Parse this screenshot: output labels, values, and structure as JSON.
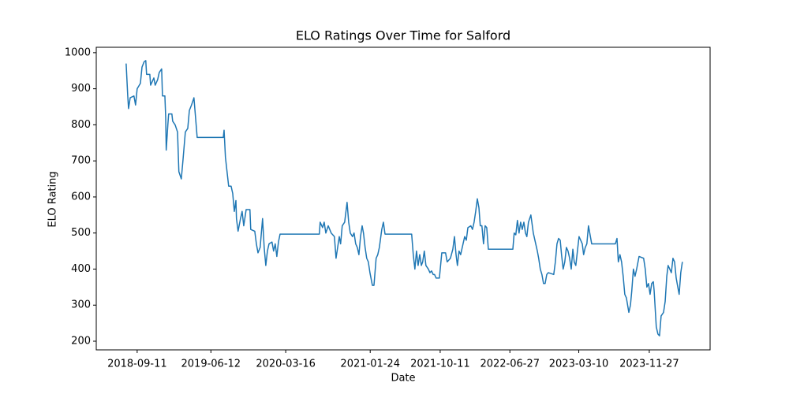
{
  "chart_data": {
    "type": "line",
    "title": "ELO Ratings Over Time for Salford",
    "x_label": "Date",
    "y_label": "ELO Rating",
    "color": "#1f77b4",
    "x": [
      "2018-08-01",
      "2018-08-07",
      "2018-08-10",
      "2018-08-16",
      "2018-08-30",
      "2018-09-05",
      "2018-09-11",
      "2018-09-23",
      "2018-09-29",
      "2018-10-07",
      "2018-10-13",
      "2018-10-16",
      "2018-10-28",
      "2018-10-31",
      "2018-11-12",
      "2018-11-17",
      "2018-11-26",
      "2018-12-02",
      "2018-12-11",
      "2018-12-14",
      "2018-12-23",
      "2018-12-26",
      "2018-12-28",
      "2019-01-03",
      "2019-01-06",
      "2019-01-18",
      "2019-01-21",
      "2019-01-30",
      "2019-02-08",
      "2019-02-13",
      "2019-02-22",
      "2019-02-28",
      "2019-03-09",
      "2019-03-18",
      "2019-03-24",
      "2019-04-01",
      "2019-04-10",
      "2019-04-16",
      "2019-04-22",
      "2019-07-28",
      "2019-07-31",
      "2019-08-05",
      "2019-08-11",
      "2019-08-17",
      "2019-08-26",
      "2019-09-01",
      "2019-09-07",
      "2019-09-13",
      "2019-09-15",
      "2019-09-21",
      "2019-09-30",
      "2019-10-06",
      "2019-10-12",
      "2019-10-21",
      "2019-11-04",
      "2019-11-07",
      "2019-11-22",
      "2019-11-28",
      "2019-12-04",
      "2019-12-12",
      "2019-12-21",
      "2019-12-27",
      "2020-01-02",
      "2020-01-08",
      "2020-01-14",
      "2020-01-25",
      "2020-01-31",
      "2020-02-06",
      "2020-02-12",
      "2020-02-18",
      "2020-02-24",
      "2020-07-19",
      "2020-07-22",
      "2020-07-31",
      "2020-08-06",
      "2020-08-12",
      "2020-08-21",
      "2020-09-01",
      "2020-09-13",
      "2020-09-19",
      "2020-09-25",
      "2020-10-01",
      "2020-10-06",
      "2020-10-12",
      "2020-10-21",
      "2020-10-30",
      "2020-11-05",
      "2020-11-11",
      "2020-11-19",
      "2020-11-25",
      "2020-12-01",
      "2020-12-07",
      "2020-12-13",
      "2020-12-19",
      "2020-12-25",
      "2020-12-30",
      "2021-01-05",
      "2021-01-11",
      "2021-01-17",
      "2021-01-23",
      "2021-02-01",
      "2021-02-07",
      "2021-02-15",
      "2021-02-21",
      "2021-02-27",
      "2021-03-08",
      "2021-03-14",
      "2021-03-20",
      "2021-06-27",
      "2021-07-03",
      "2021-07-09",
      "2021-07-15",
      "2021-07-21",
      "2021-07-27",
      "2021-08-02",
      "2021-08-07",
      "2021-08-13",
      "2021-08-19",
      "2021-08-28",
      "2021-09-03",
      "2021-09-09",
      "2021-09-15",
      "2021-09-20",
      "2021-09-26",
      "2021-10-08",
      "2021-10-17",
      "2021-10-31",
      "2021-11-06",
      "2021-11-18",
      "2021-11-27",
      "2021-12-03",
      "2021-12-09",
      "2021-12-14",
      "2021-12-20",
      "2021-12-26",
      "2022-01-04",
      "2022-01-10",
      "2022-01-16",
      "2022-01-22",
      "2022-02-02",
      "2022-02-08",
      "2022-02-14",
      "2022-02-20",
      "2022-02-26",
      "2022-03-04",
      "2022-03-09",
      "2022-03-15",
      "2022-03-21",
      "2022-03-27",
      "2022-04-02",
      "2022-04-08",
      "2022-07-08",
      "2022-07-13",
      "2022-07-19",
      "2022-07-25",
      "2022-07-31",
      "2022-08-06",
      "2022-08-12",
      "2022-08-18",
      "2022-08-24",
      "2022-08-29",
      "2022-09-04",
      "2022-09-13",
      "2022-09-22",
      "2022-10-01",
      "2022-10-07",
      "2022-10-12",
      "2022-10-18",
      "2022-10-24",
      "2022-10-30",
      "2022-11-05",
      "2022-11-11",
      "2022-11-17",
      "2022-12-07",
      "2022-12-13",
      "2022-12-19",
      "2022-12-25",
      "2022-12-31",
      "2023-01-05",
      "2023-01-11",
      "2023-01-17",
      "2023-01-23",
      "2023-01-29",
      "2023-02-04",
      "2023-02-10",
      "2023-02-16",
      "2023-02-21",
      "2023-02-27",
      "2023-03-05",
      "2023-03-11",
      "2023-03-17",
      "2023-03-23",
      "2023-03-28",
      "2023-04-03",
      "2023-04-09",
      "2023-04-15",
      "2023-04-27",
      "2023-07-24",
      "2023-07-30",
      "2023-08-04",
      "2023-08-10",
      "2023-08-16",
      "2023-08-22",
      "2023-08-28",
      "2023-09-03",
      "2023-09-12",
      "2023-09-18",
      "2023-09-23",
      "2023-09-29",
      "2023-10-05",
      "2023-10-11",
      "2023-10-20",
      "2023-11-06",
      "2023-11-12",
      "2023-11-18",
      "2023-11-24",
      "2023-11-30",
      "2023-12-06",
      "2023-12-12",
      "2023-12-15",
      "2023-12-17",
      "2023-12-23",
      "2023-12-29",
      "2024-01-04",
      "2024-01-10",
      "2024-01-19",
      "2024-01-25",
      "2024-01-31",
      "2024-02-05",
      "2024-02-11",
      "2024-02-17",
      "2024-02-23",
      "2024-02-29",
      "2024-03-06",
      "2024-03-12",
      "2024-03-17",
      "2024-03-23",
      "2024-03-29"
    ],
    "values": [
      970,
      880,
      845,
      875,
      880,
      855,
      900,
      915,
      960,
      975,
      978,
      940,
      940,
      910,
      930,
      910,
      925,
      945,
      955,
      880,
      880,
      820,
      730,
      800,
      830,
      830,
      810,
      800,
      780,
      670,
      650,
      700,
      780,
      790,
      840,
      855,
      875,
      820,
      765,
      765,
      785,
      710,
      670,
      630,
      630,
      610,
      560,
      590,
      540,
      505,
      540,
      560,
      520,
      565,
      565,
      510,
      505,
      470,
      445,
      460,
      540,
      460,
      410,
      450,
      470,
      475,
      450,
      470,
      435,
      475,
      497,
      497,
      530,
      515,
      530,
      500,
      520,
      500,
      490,
      430,
      460,
      490,
      470,
      520,
      530,
      585,
      530,
      500,
      490,
      500,
      470,
      460,
      440,
      490,
      520,
      500,
      460,
      430,
      420,
      390,
      355,
      355,
      430,
      440,
      460,
      510,
      530,
      497,
      497,
      440,
      400,
      450,
      410,
      440,
      410,
      420,
      450,
      410,
      400,
      390,
      395,
      385,
      385,
      375,
      375,
      445,
      445,
      420,
      430,
      455,
      490,
      440,
      410,
      450,
      440,
      470,
      490,
      480,
      515,
      520,
      510,
      530,
      560,
      595,
      570,
      520,
      520,
      470,
      520,
      515,
      455,
      455,
      500,
      495,
      535,
      500,
      530,
      510,
      530,
      500,
      490,
      530,
      550,
      500,
      470,
      450,
      430,
      400,
      385,
      360,
      360,
      385,
      390,
      385,
      420,
      470,
      485,
      480,
      440,
      400,
      420,
      460,
      450,
      430,
      400,
      455,
      420,
      410,
      450,
      490,
      480,
      470,
      440,
      460,
      470,
      520,
      470,
      470,
      485,
      420,
      440,
      420,
      380,
      330,
      320,
      280,
      300,
      340,
      400,
      380,
      400,
      435,
      430,
      400,
      350,
      360,
      330,
      360,
      365,
      340,
      315,
      240,
      220,
      215,
      270,
      280,
      310,
      380,
      410,
      400,
      390,
      430,
      420,
      375,
      350,
      330,
      390,
      420
    ],
    "xlim": [
      "2018-04-12",
      "2024-07-10"
    ],
    "xticks": [
      "2018-09-11",
      "2019-06-12",
      "2020-03-16",
      "2021-01-24",
      "2021-10-11",
      "2022-06-27",
      "2023-03-10",
      "2023-11-27"
    ],
    "ylim": [
      176,
      1015
    ],
    "yticks": [
      200,
      300,
      400,
      500,
      600,
      700,
      800,
      900,
      1000
    ],
    "grid": false
  }
}
